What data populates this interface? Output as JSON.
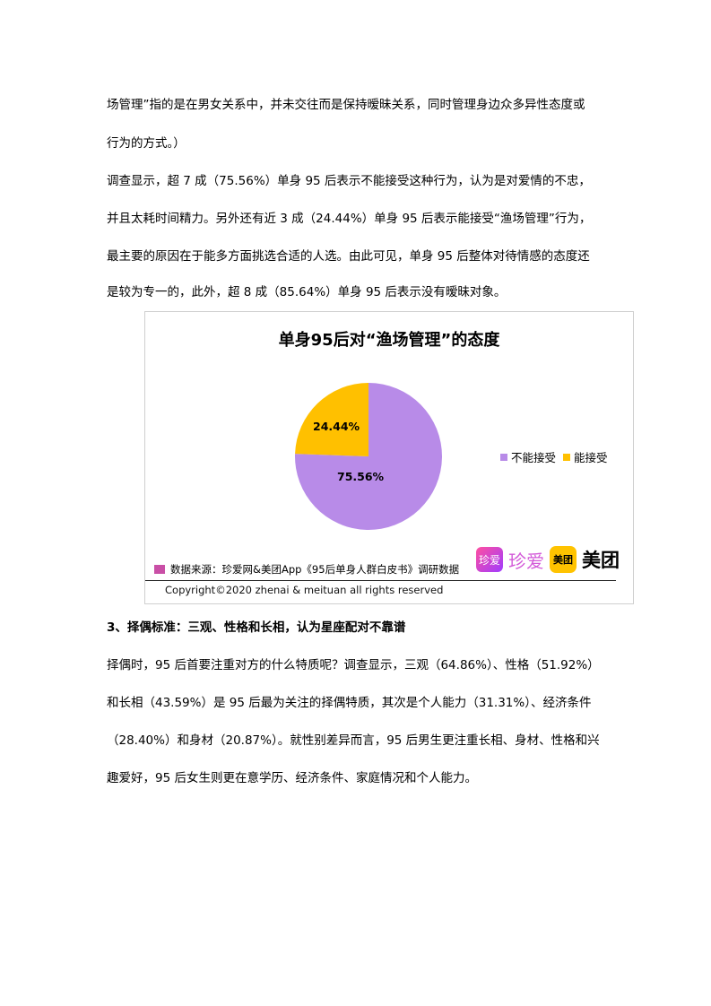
{
  "paragraph1": {
    "lines": [
      "场管理”指的是在男女关系中，并未交往而是保持暧昧关系，同时管理身边众多异性态度或",
      "行为的方式。）",
      "调查显示，超 7 成（75.56%）单身 95 后表示不能接受这种行为，认为是对爱情的不忠，",
      "并且太耗时间精力。另外还有近 3 成（24.44%）单身 95 后表示能接受“渔场管理”行为，",
      "最主要的原因在于能多方面挑选合适的人选。由此可见，单身 95 后整体对待情感的态度还",
      "是较为专一的，此外，超 8 成（85.64%）单身 95 后表示没有暧昧对象。"
    ]
  },
  "chart_data": {
    "type": "pie",
    "title": "单身95后对“渔场管理”的态度",
    "categories": [
      "不能接受",
      "能接受"
    ],
    "values": [
      75.56,
      24.44
    ],
    "labels": [
      "75.56%",
      "24.44%"
    ],
    "colors": [
      "#b88be8",
      "#ffc000"
    ],
    "legend_position": "right"
  },
  "chart_footer": {
    "source": "数据来源：珍爱网&美团App《95后单身人群白皮书》调研数据",
    "source_color": "#c94fa6",
    "copyright": "Copyright©2020 zhenai & meituan all rights reserved",
    "logo_zhenai": "珍爱",
    "logo_meituan": "美团"
  },
  "section3": {
    "heading": "3、择偶标准：三观、性格和长相，认为星座配对不靠谱",
    "lines": [
      "择偶时，95 后首要注重对方的什么特质呢？调查显示，三观（64.86%）、性格（51.92%）",
      "和长相（43.59%）是 95 后最为关注的择偶特质，其次是个人能力（31.31%）、经济条件",
      "（28.40%）和身材（20.87%）。就性别差异而言，95 后男生更注重长相、身材、性格和兴",
      "趣爱好，95 后女生则更在意学历、经济条件、家庭情况和个人能力。"
    ]
  }
}
